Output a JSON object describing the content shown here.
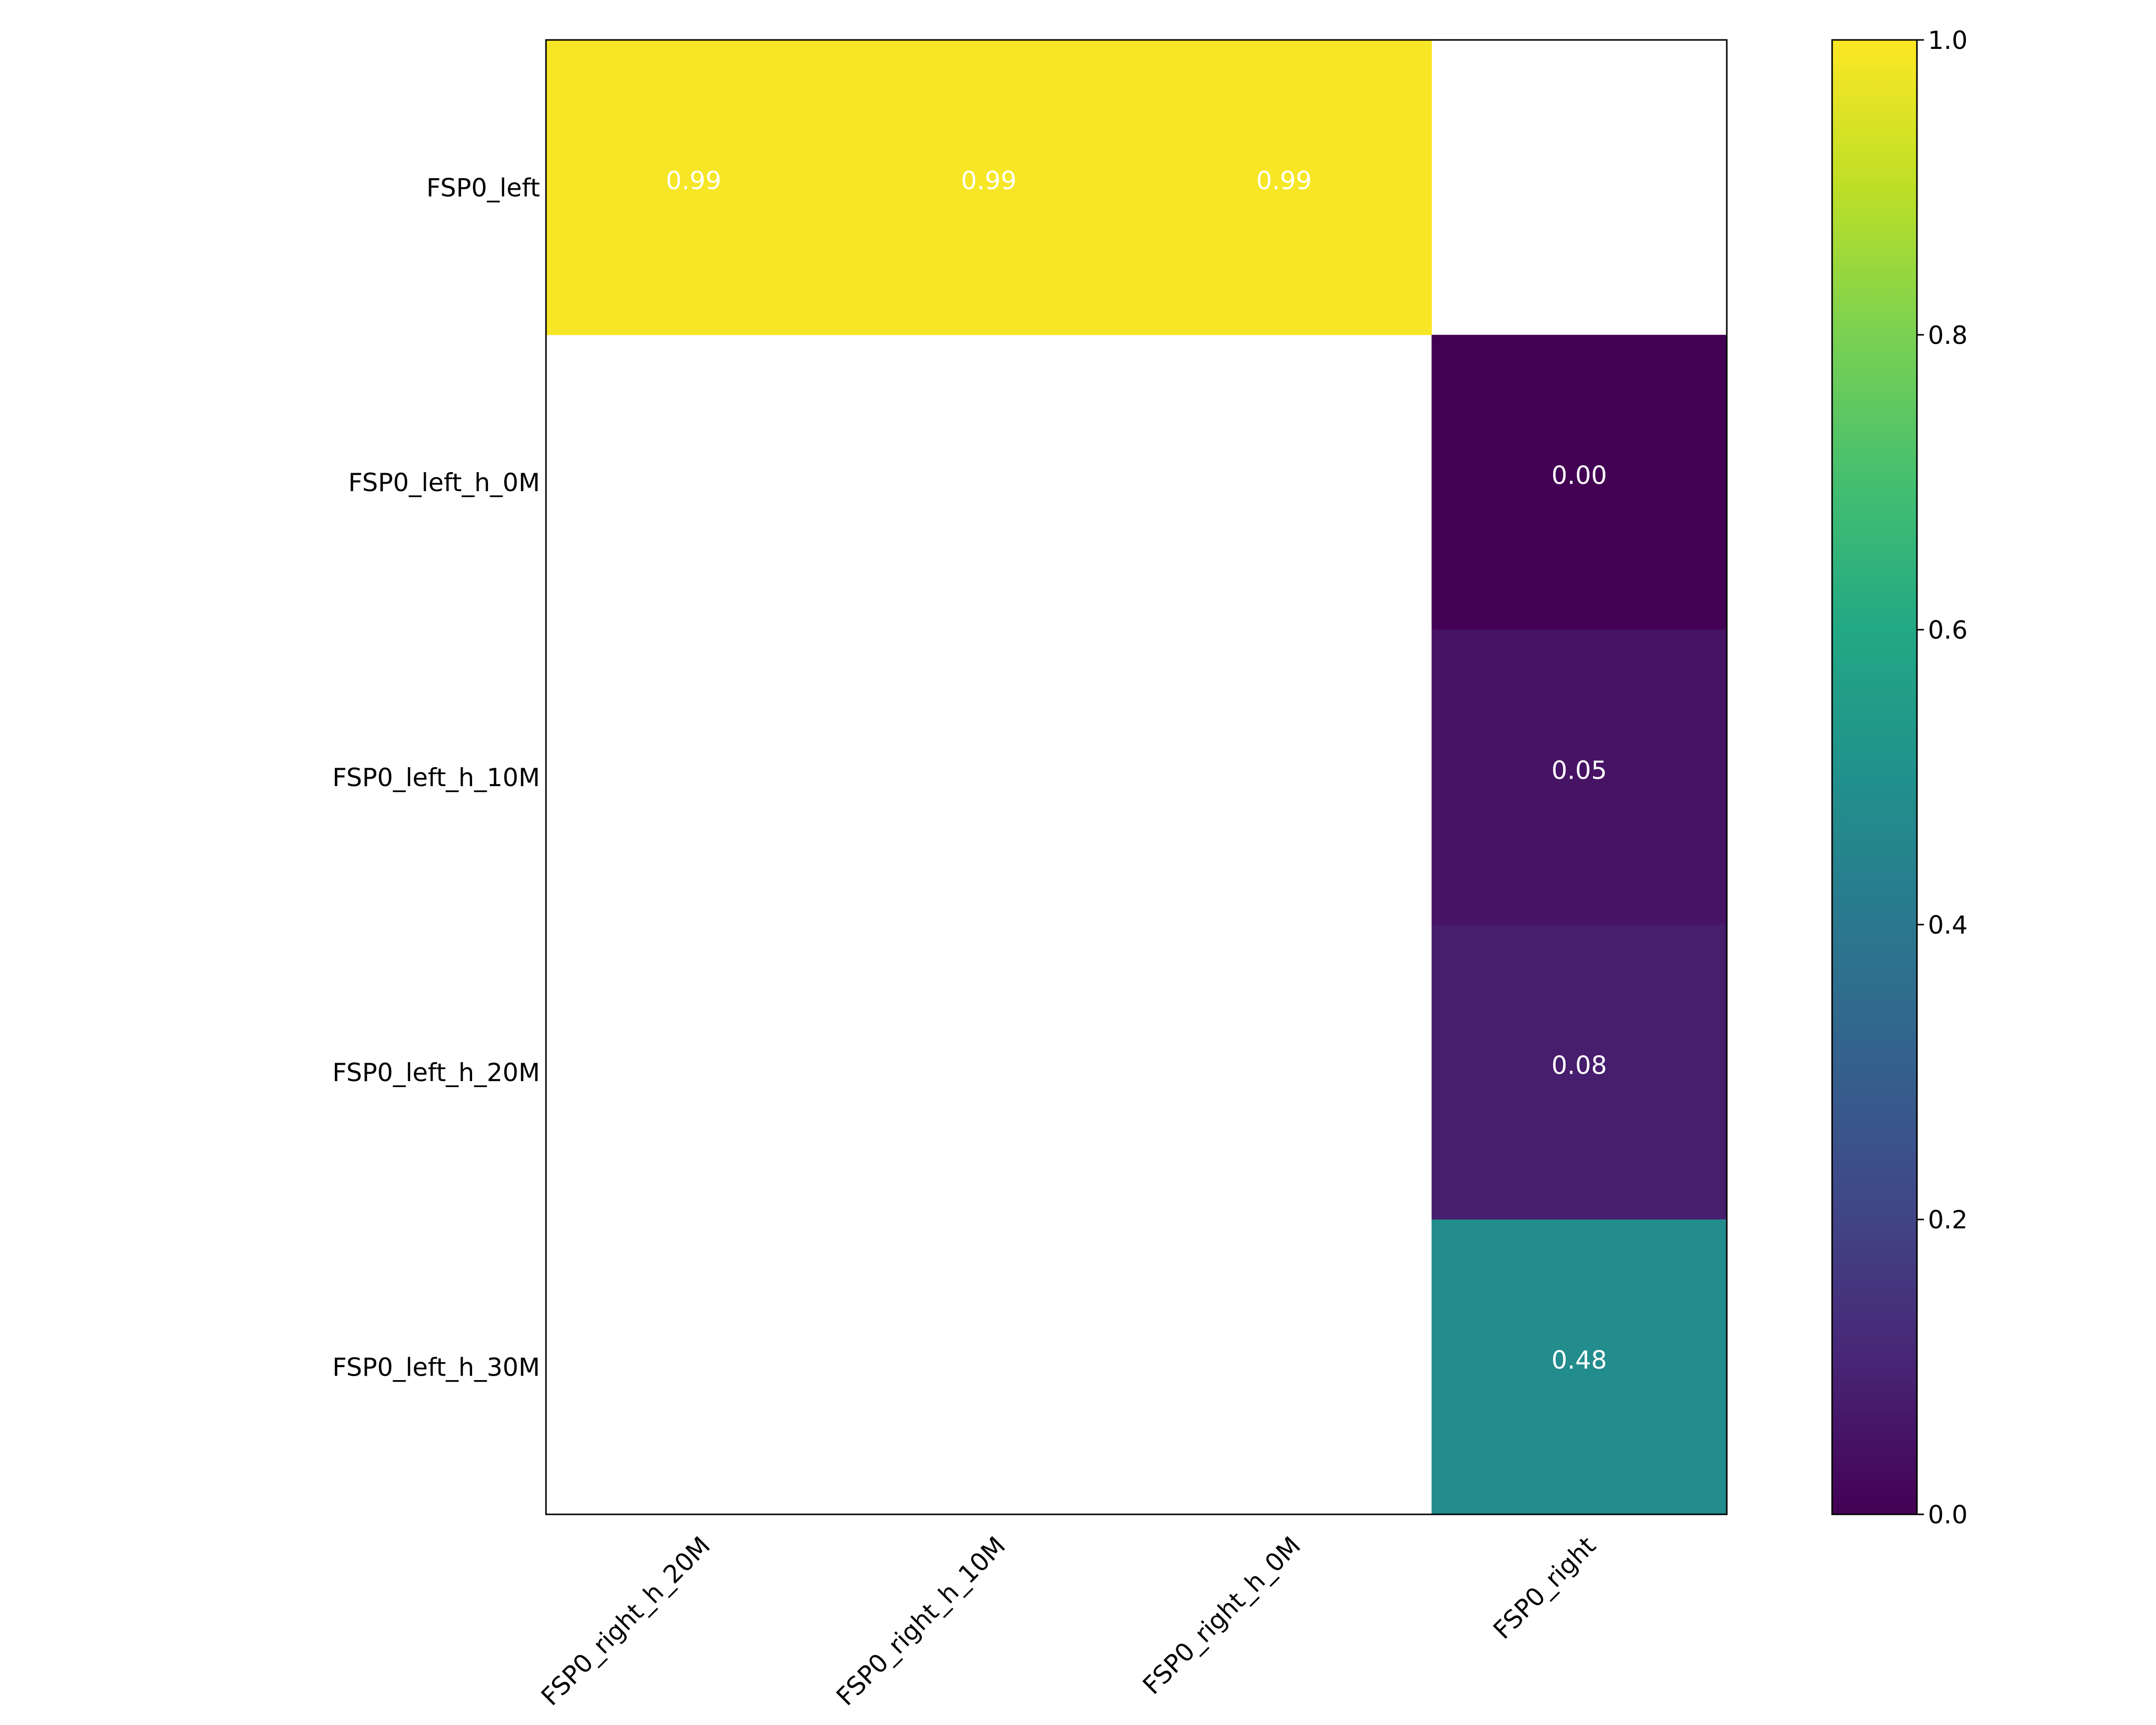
{
  "chart_data": {
    "type": "heatmap",
    "title": "",
    "xlabel": "",
    "ylabel": "",
    "x_categories": [
      "FSP0_right_h_20M",
      "FSP0_right_h_10M",
      "FSP0_right_h_0M",
      "FSP0_right"
    ],
    "y_categories": [
      "FSP0_left",
      "FSP0_left_h_0M",
      "FSP0_left_h_10M",
      "FSP0_left_h_20M",
      "FSP0_left_h_30M"
    ],
    "values": [
      [
        0.99,
        0.99,
        0.99,
        null
      ],
      [
        null,
        null,
        null,
        0.0
      ],
      [
        null,
        null,
        null,
        0.05
      ],
      [
        null,
        null,
        null,
        0.08
      ],
      [
        null,
        null,
        null,
        0.48
      ]
    ],
    "cell_labels": [
      [
        "0.99",
        "0.99",
        "0.99",
        ""
      ],
      [
        "",
        "",
        "",
        "0.00"
      ],
      [
        "",
        "",
        "",
        "0.05"
      ],
      [
        "",
        "",
        "",
        "0.08"
      ],
      [
        "",
        "",
        "",
        "0.48"
      ]
    ],
    "colormap": "viridis",
    "colorbar": {
      "range": [
        0.0,
        1.0
      ],
      "ticks": [
        0.0,
        0.2,
        0.4,
        0.6,
        0.8,
        1.0
      ],
      "tick_labels": [
        "0.0",
        "0.2",
        "0.4",
        "0.6",
        "0.8",
        "1.0"
      ]
    },
    "grid": false
  }
}
